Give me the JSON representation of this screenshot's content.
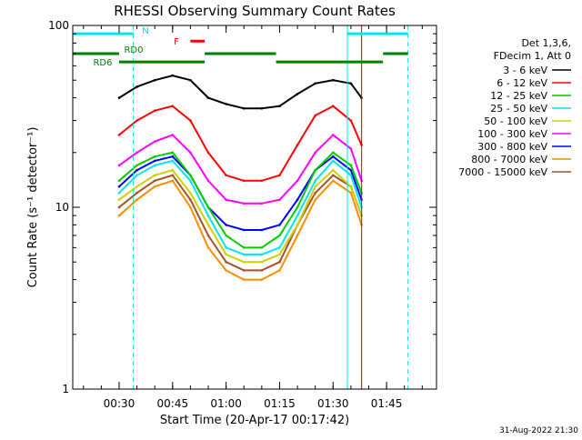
{
  "chart_data": {
    "type": "line",
    "title": "RHESSI Observing Summary Count Rates",
    "xlabel": "Start Time (20-Apr-17 00:17:42)",
    "ylabel": "Count Rate (s⁻¹ detector⁻¹)",
    "yscale": "log",
    "ylim": [
      1,
      100
    ],
    "xlim": [
      "00:17",
      "01:59"
    ],
    "x_ticks": [
      "00:30",
      "00:45",
      "01:00",
      "01:15",
      "01:30",
      "01:45"
    ],
    "y_ticks": [
      "1",
      "10",
      "100"
    ],
    "legend_header": [
      "Det 1,3,6,",
      "FDecim 1, Att 0"
    ],
    "legend_position": "right",
    "series": [
      {
        "name": "3 - 6 keV",
        "color": "#000000",
        "x": [
          "00:30",
          "00:35",
          "00:40",
          "00:45",
          "00:50",
          "00:55",
          "01:00",
          "01:05",
          "01:10",
          "01:15",
          "01:20",
          "01:25",
          "01:30",
          "01:35",
          "01:38"
        ],
        "values": [
          40,
          46,
          50,
          53,
          50,
          40,
          37,
          35,
          35,
          36,
          42,
          48,
          50,
          48,
          40
        ]
      },
      {
        "name": "6 - 12 keV",
        "color": "#ff0000",
        "x": [
          "00:30",
          "00:35",
          "00:40",
          "00:45",
          "00:50",
          "00:55",
          "01:00",
          "01:05",
          "01:10",
          "01:15",
          "01:20",
          "01:25",
          "01:30",
          "01:35",
          "01:38"
        ],
        "values": [
          25,
          30,
          34,
          36,
          30,
          20,
          15,
          14,
          14,
          15,
          22,
          32,
          36,
          30,
          22
        ]
      },
      {
        "name": "12 - 25 keV",
        "color": "#00cc00",
        "x": [
          "00:30",
          "00:35",
          "00:40",
          "00:45",
          "00:50",
          "00:55",
          "01:00",
          "01:05",
          "01:10",
          "01:15",
          "01:20",
          "01:25",
          "01:30",
          "01:35",
          "01:38"
        ],
        "values": [
          14,
          17,
          19,
          20,
          15,
          10,
          7,
          6,
          6,
          7,
          10,
          16,
          20,
          17,
          12
        ]
      },
      {
        "name": "25 - 50 keV",
        "color": "#00e5ee",
        "x": [
          "00:30",
          "00:35",
          "00:40",
          "00:45",
          "00:50",
          "00:55",
          "01:00",
          "01:05",
          "01:10",
          "01:15",
          "01:20",
          "01:25",
          "01:30",
          "01:35",
          "01:38"
        ],
        "values": [
          12,
          15,
          17,
          18,
          14,
          9,
          6,
          5.5,
          5.5,
          6,
          9,
          14,
          18,
          15,
          10
        ]
      },
      {
        "name": "50 - 100 keV",
        "color": "#ccd100",
        "x": [
          "00:30",
          "00:35",
          "00:40",
          "00:45",
          "00:50",
          "00:55",
          "01:00",
          "01:05",
          "01:10",
          "01:15",
          "01:20",
          "01:25",
          "01:30",
          "01:35",
          "01:38"
        ],
        "values": [
          11,
          13,
          15,
          16,
          12,
          8,
          5.5,
          5,
          5,
          5.5,
          8,
          13,
          16,
          13,
          9
        ]
      },
      {
        "name": "100 - 300 keV",
        "color": "#ff00ff",
        "x": [
          "00:30",
          "00:35",
          "00:40",
          "00:45",
          "00:50",
          "00:55",
          "01:00",
          "01:05",
          "01:10",
          "01:15",
          "01:20",
          "01:25",
          "01:30",
          "01:35",
          "01:38"
        ],
        "values": [
          17,
          20,
          23,
          25,
          20,
          14,
          11,
          10.5,
          10.5,
          11,
          14,
          20,
          25,
          21,
          14
        ]
      },
      {
        "name": "300 - 800 keV",
        "color": "#0000ff",
        "x": [
          "00:30",
          "00:35",
          "00:40",
          "00:45",
          "00:50",
          "00:55",
          "01:00",
          "01:05",
          "01:10",
          "01:15",
          "01:20",
          "01:25",
          "01:30",
          "01:35",
          "01:38"
        ],
        "values": [
          13,
          16,
          18,
          19,
          15,
          10,
          8,
          7.5,
          7.5,
          8,
          11,
          16,
          19,
          16,
          11
        ]
      },
      {
        "name": "800 - 7000 keV",
        "color": "#ff8c00",
        "x": [
          "00:30",
          "00:35",
          "00:40",
          "00:45",
          "00:50",
          "00:55",
          "01:00",
          "01:05",
          "01:10",
          "01:15",
          "01:20",
          "01:25",
          "01:30",
          "01:35",
          "01:38"
        ],
        "values": [
          9,
          11,
          13,
          14,
          10,
          6,
          4.5,
          4,
          4,
          4.5,
          7,
          11,
          14,
          12,
          8
        ]
      },
      {
        "name": "7000 - 15000 keV",
        "color": "#a0522d",
        "x": [
          "00:30",
          "00:35",
          "00:40",
          "00:45",
          "00:50",
          "00:55",
          "01:00",
          "01:05",
          "01:10",
          "01:15",
          "01:20",
          "01:25",
          "01:30",
          "01:35",
          "01:38"
        ],
        "values": [
          10,
          12,
          14,
          15,
          11,
          7,
          5,
          4.5,
          4.5,
          5,
          8,
          12,
          15,
          13,
          9
        ]
      }
    ],
    "bars": [
      {
        "label": "N",
        "color": "#00e5ee",
        "level": 90,
        "segments": [
          [
            "00:17",
            "00:34"
          ],
          [
            "01:34",
            "01:51"
          ]
        ]
      },
      {
        "label": "F",
        "color": "#ff0000",
        "level": 82,
        "segments": [
          [
            "00:50",
            "00:54"
          ]
        ]
      },
      {
        "label": "RD0",
        "color": "#008000",
        "level": 70,
        "segments": [
          [
            "00:17",
            "00:30"
          ],
          [
            "00:54",
            "01:14"
          ],
          [
            "01:44",
            "01:51"
          ]
        ]
      },
      {
        "label": "RD6",
        "color": "#008000",
        "level": 63,
        "segments": [
          [
            "00:30",
            "00:54"
          ],
          [
            "01:14",
            "01:44"
          ]
        ]
      }
    ],
    "vertical_lines": [
      {
        "x": "00:17",
        "color": "#00e5ee",
        "style": "solid"
      },
      {
        "x": "00:34",
        "color": "#00e5ee",
        "style": "dashed"
      },
      {
        "x": "01:34",
        "color": "#00e5ee",
        "style": "solid"
      },
      {
        "x": "01:51",
        "color": "#00e5ee",
        "style": "dashed"
      },
      {
        "x": "01:38",
        "color": "#cc0000",
        "style": "solid"
      }
    ],
    "grid": false
  },
  "footer_timestamp": "31-Aug-2022 21:30"
}
